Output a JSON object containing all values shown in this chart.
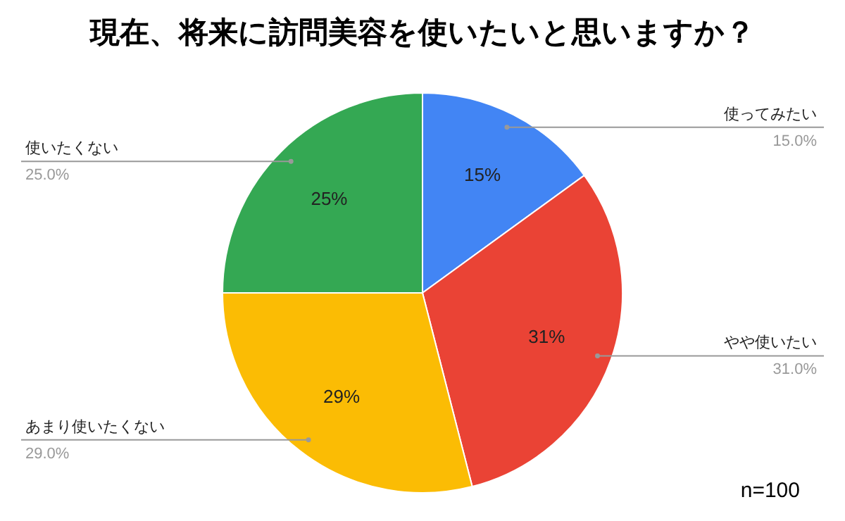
{
  "chart_data": {
    "type": "pie",
    "title": "現在、将来に訪問美容を使いたいと思いますか？",
    "categories": [
      "使ってみたい",
      "やや使いたい",
      "あまり使いたくない",
      "使いたくない"
    ],
    "values": [
      15,
      31,
      29,
      25
    ],
    "colors": [
      "#4285f4",
      "#ea4335",
      "#fbbc04",
      "#34a853"
    ],
    "value_labels": [
      "15%",
      "31%",
      "29%",
      "25%"
    ],
    "annotations": [
      {
        "text": "15.0%",
        "x": "使ってみたい"
      },
      {
        "text": "31.0%",
        "x": "やや使いたい"
      },
      {
        "text": "29.0%",
        "x": "あまり使いたくない"
      },
      {
        "text": "25.0%",
        "x": "使いたくない"
      },
      "n=100"
    ]
  }
}
